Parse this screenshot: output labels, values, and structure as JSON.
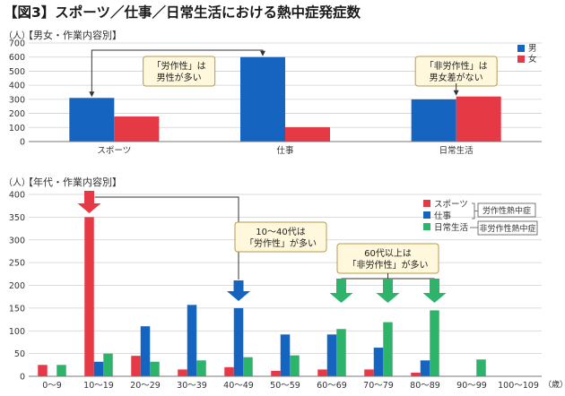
{
  "figure_title": "【図3】スポーツ／仕事／日常生活における熱中症発症数",
  "colors": {
    "male": "#1565c0",
    "female": "#e53945",
    "sports": "#e53945",
    "work": "#1565c0",
    "daily": "#2eb36b",
    "grid": "#cfcfcf",
    "callout_fill": "#fff8dc",
    "callout_stroke": "#b49a4a"
  },
  "chart_data": [
    {
      "type": "bar",
      "subtitle": "【男女・作業内容別】",
      "unit_label": "（人）",
      "categories": [
        "スポーツ",
        "仕事",
        "日常生活"
      ],
      "series": [
        {
          "name": "男",
          "values": [
            310,
            600,
            300
          ]
        },
        {
          "name": "女",
          "values": [
            178,
            102,
            320
          ]
        }
      ],
      "ylim": [
        0,
        700
      ],
      "yticks": [
        0,
        100,
        200,
        300,
        400,
        500,
        600,
        700
      ],
      "grid": true,
      "legend_position": "top-right",
      "annotations": [
        {
          "text": [
            "「労作性」は",
            "男性が多い"
          ],
          "targets": [
            "スポーツ",
            "仕事"
          ]
        },
        {
          "text": [
            "「非労作性」は",
            "男女差がない"
          ],
          "targets": [
            "日常生活"
          ]
        }
      ]
    },
    {
      "type": "bar",
      "subtitle": "【年代・作業内容別】",
      "unit_label": "（人）",
      "xlabel_unit": "（歳）",
      "categories": [
        "0～9",
        "10～19",
        "20～29",
        "30～39",
        "40～49",
        "50～59",
        "60～69",
        "70～79",
        "80～89",
        "90～99",
        "100～109"
      ],
      "series": [
        {
          "name": "スポーツ",
          "values": [
            25,
            350,
            45,
            15,
            20,
            12,
            15,
            15,
            8,
            0,
            0
          ]
        },
        {
          "name": "仕事",
          "values": [
            0,
            32,
            110,
            157,
            150,
            92,
            92,
            63,
            35,
            0,
            0
          ]
        },
        {
          "name": "日常生活",
          "values": [
            25,
            50,
            32,
            35,
            42,
            46,
            104,
            119,
            145,
            37,
            0
          ]
        }
      ],
      "ylim": [
        0,
        400
      ],
      "yticks": [
        0,
        50,
        100,
        150,
        200,
        250,
        300,
        350,
        400
      ],
      "grid": true,
      "legend_position": "top-right",
      "legend_groups": [
        {
          "label": "労作性熱中症",
          "members": [
            "スポーツ",
            "仕事"
          ]
        },
        {
          "label": "非労作性熱中症",
          "members": [
            "日常生活"
          ]
        }
      ],
      "annotations": [
        {
          "text": [
            "10～40代は",
            "「労作性」が多い"
          ],
          "targets": [
            "10～19",
            "40～49"
          ]
        },
        {
          "text": [
            "60代以上は",
            "「非労作性」が多い"
          ],
          "targets": [
            "60～69",
            "70～79",
            "80～89"
          ]
        }
      ]
    }
  ]
}
